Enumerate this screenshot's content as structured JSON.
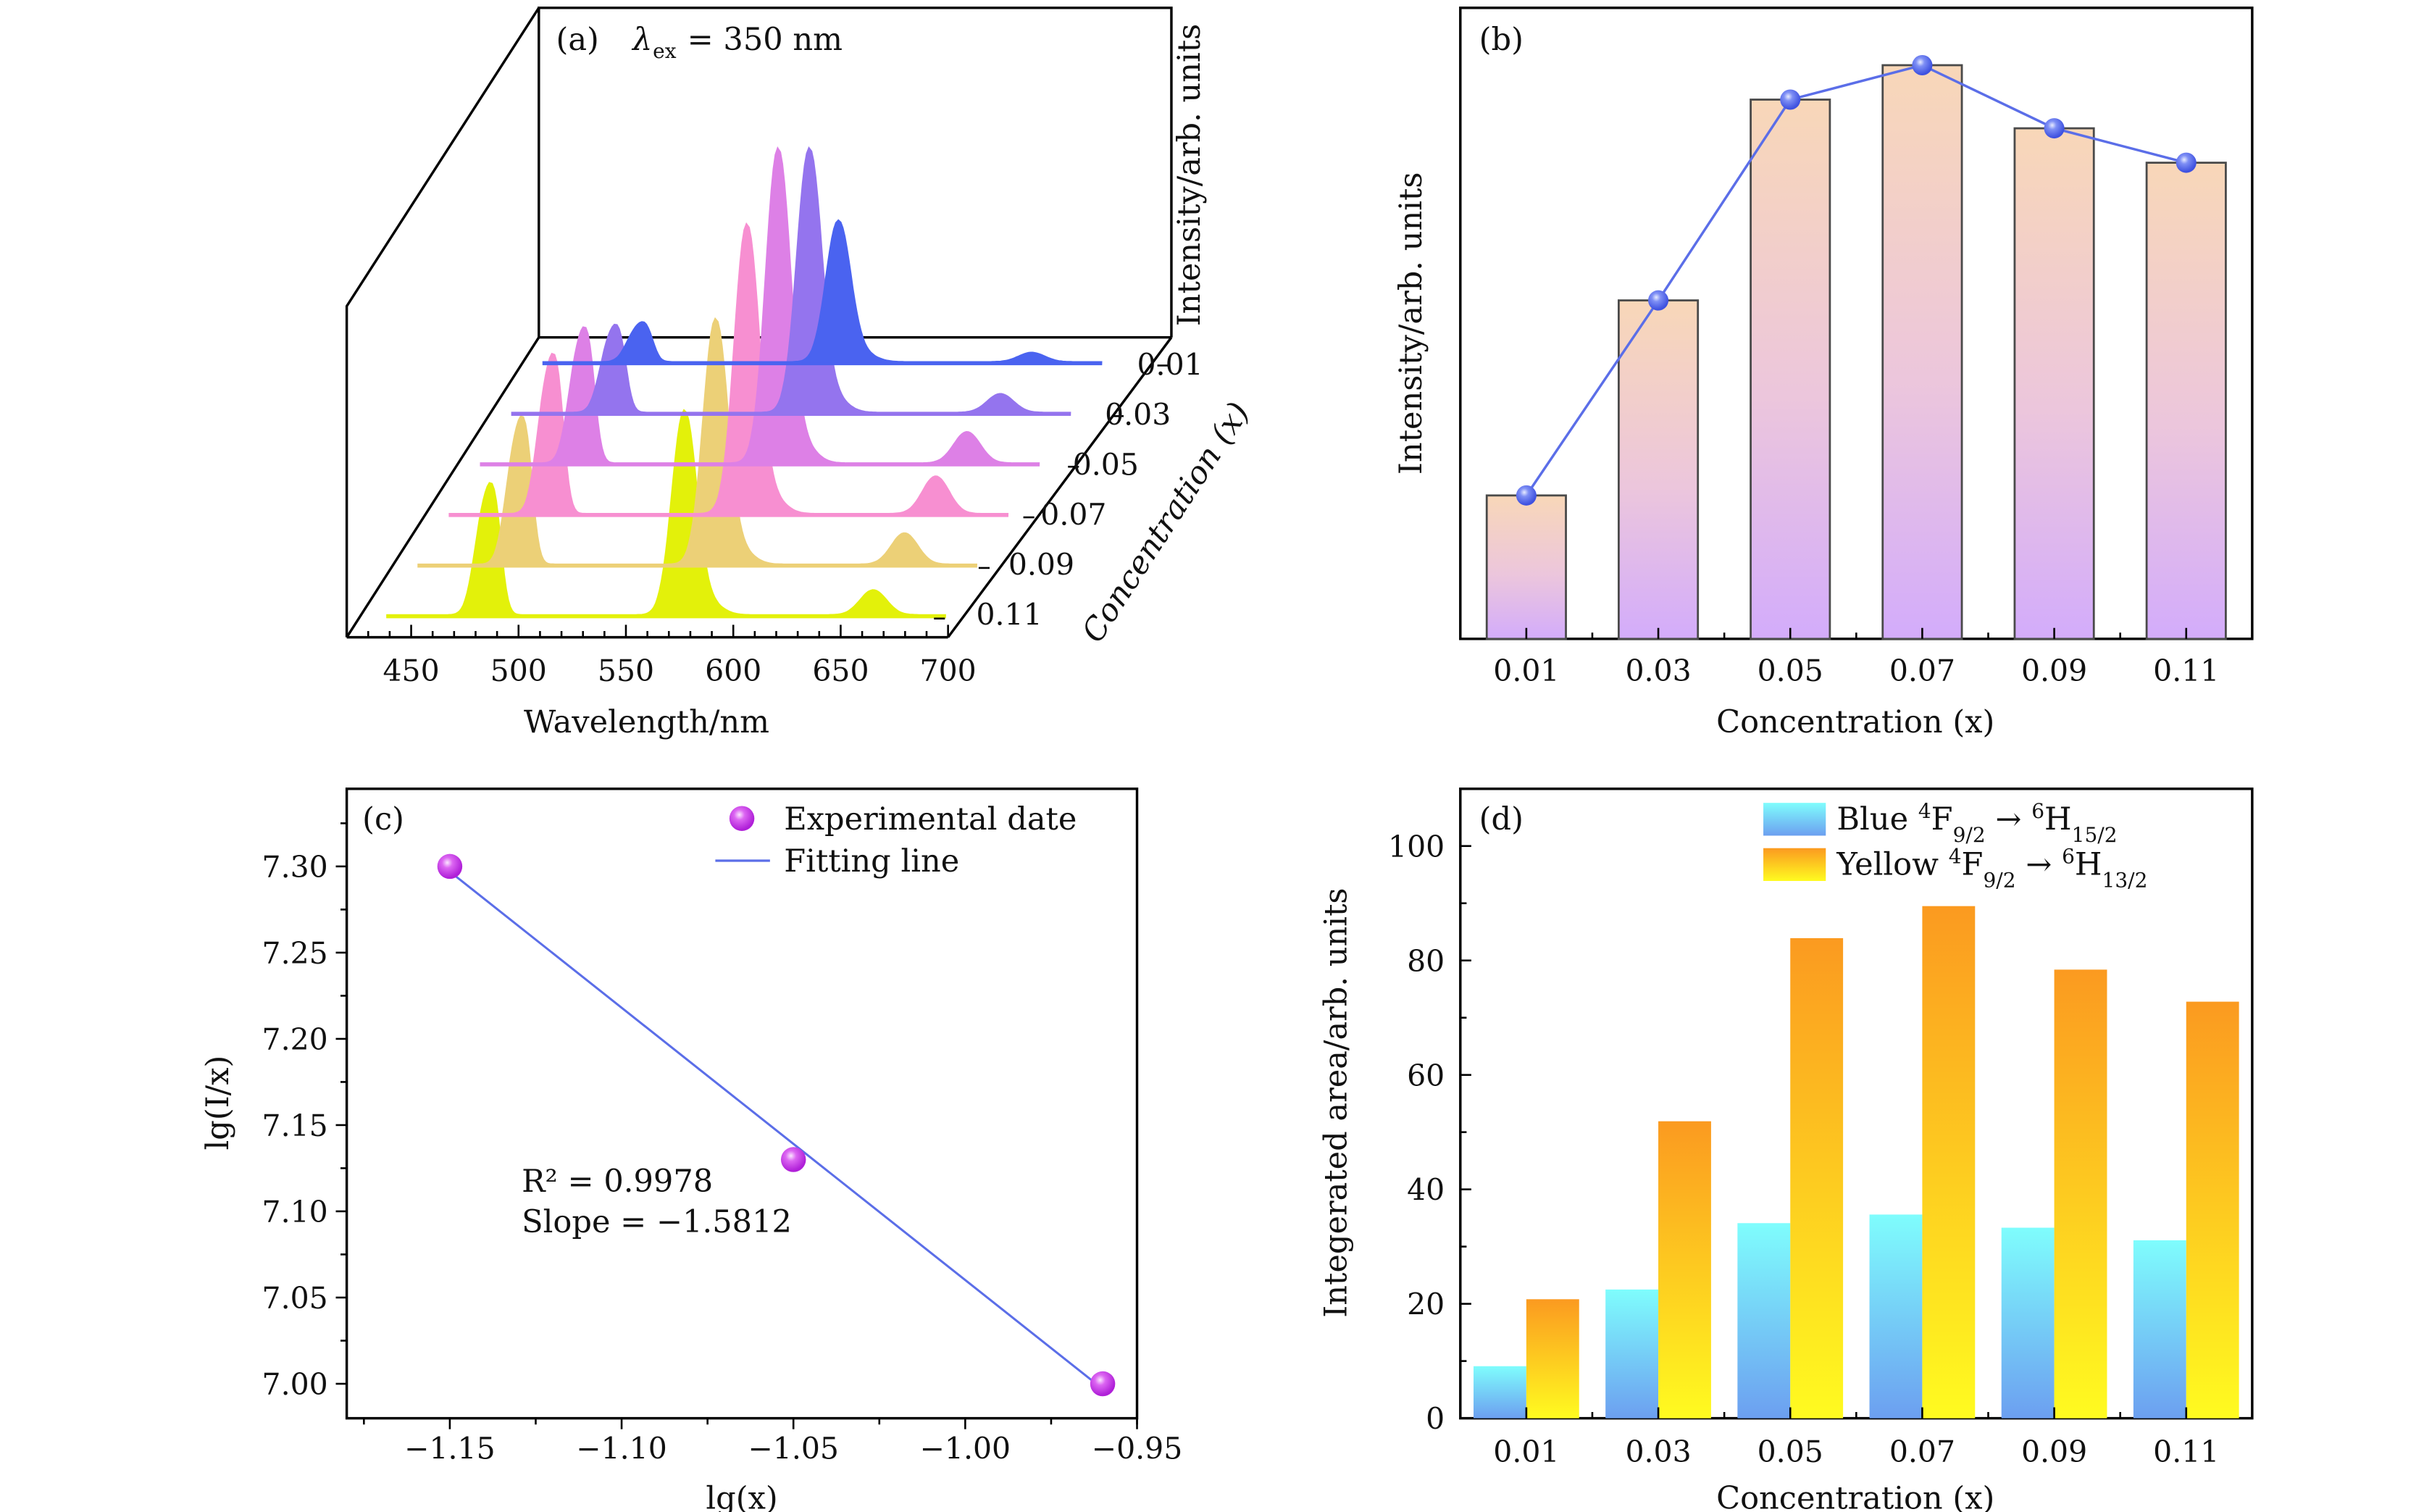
{
  "chart_data": [
    {
      "id": "a",
      "type": "area",
      "panel_label": "(a)",
      "annotation": "λex = 350 nm",
      "annotation_symbol": "λ",
      "annotation_sub": "ex",
      "annotation_value": "=  350 nm",
      "xlabel": "Wavelength/nm",
      "ylabel": "Intensity/arb. units",
      "zlabel": "Concentration (x)",
      "xlim": [
        420,
        700
      ],
      "xticks": [
        450,
        500,
        550,
        600,
        650,
        700
      ],
      "zticks": [
        "0.01",
        "0.03",
        "0.05",
        "0.07",
        "0.09",
        "0.11"
      ],
      "series": [
        {
          "name": "0.01",
          "color": "#4a63f0",
          "peaks": [
            {
              "x": 480,
              "h": 0.1
            },
            {
              "x": 574,
              "h": 0.45
            },
            {
              "x": 664,
              "h": 0.03
            }
          ]
        },
        {
          "name": "0.03",
          "color": "#9474ee",
          "peaks": [
            {
              "x": 482,
              "h": 0.22
            },
            {
              "x": 575,
              "h": 0.84
            },
            {
              "x": 664,
              "h": 0.06
            }
          ]
        },
        {
          "name": "0.05",
          "color": "#dd80e6",
          "peaks": [
            {
              "x": 482,
              "h": 0.34
            },
            {
              "x": 575,
              "h": 1.0
            },
            {
              "x": 663,
              "h": 0.1
            }
          ]
        },
        {
          "name": "0.07",
          "color": "#f78fd1",
          "peaks": [
            {
              "x": 482,
              "h": 0.4
            },
            {
              "x": 575,
              "h": 0.92
            },
            {
              "x": 663,
              "h": 0.12
            }
          ]
        },
        {
          "name": "0.09",
          "color": "#ecd077",
          "peaks": [
            {
              "x": 482,
              "h": 0.37
            },
            {
              "x": 575,
              "h": 0.78
            },
            {
              "x": 663,
              "h": 0.1
            }
          ]
        },
        {
          "name": "0.11",
          "color": "#e3f10a",
          "peaks": [
            {
              "x": 482,
              "h": 0.33
            },
            {
              "x": 575,
              "h": 0.65
            },
            {
              "x": 663,
              "h": 0.08
            }
          ]
        }
      ]
    },
    {
      "id": "b",
      "type": "bar",
      "panel_label": "(b)",
      "xlabel": "Concentration (x)",
      "ylabel": "Intensity/arb. units",
      "categories": [
        "0.01",
        "0.03",
        "0.05",
        "0.07",
        "0.09",
        "0.11"
      ],
      "values": [
        0.25,
        0.59,
        0.94,
        1.0,
        0.89,
        0.83
      ],
      "ylim": [
        0,
        1.1
      ],
      "line_color": "#5b6ee8",
      "bar_top_color": "#f8d7b8",
      "bar_bottom_color": "#d3acfb"
    },
    {
      "id": "c",
      "type": "scatter",
      "panel_label": "(c)",
      "xlabel": "lg(x)",
      "ylabel": "lg(I/x)",
      "xlim": [
        -1.18,
        -0.95
      ],
      "ylim": [
        6.98,
        7.345
      ],
      "xticks": [
        "−1.15",
        "−1.10",
        "−1.05",
        "−1.00",
        "−0.95"
      ],
      "xtick_values": [
        -1.15,
        -1.1,
        -1.05,
        -1.0,
        -0.95
      ],
      "yticks": [
        "7.00",
        "7.05",
        "7.10",
        "7.15",
        "7.20",
        "7.25",
        "7.30"
      ],
      "ytick_values": [
        7.0,
        7.05,
        7.1,
        7.15,
        7.2,
        7.25,
        7.3
      ],
      "points": [
        {
          "x": -1.15,
          "y": 7.3
        },
        {
          "x": -1.05,
          "y": 7.13
        },
        {
          "x": -0.96,
          "y": 7.0
        }
      ],
      "fit": {
        "x": [
          -1.15,
          -0.96
        ],
        "y": [
          7.297,
          6.997
        ]
      },
      "legend": [
        "Experimental date",
        "Fitting line"
      ],
      "legend_position": "top-right",
      "annotation_r2": "R² = 0.9978",
      "annotation_slope": "Slope = −1.5812",
      "point_color": "#cc33ee",
      "line_color": "#5b6ee8"
    },
    {
      "id": "d",
      "type": "bar",
      "panel_label": "(d)",
      "xlabel": "Concentration (x)",
      "ylabel": "Integerated area/arb. units",
      "categories": [
        "0.01",
        "0.03",
        "0.05",
        "0.07",
        "0.09",
        "0.11"
      ],
      "ylim": [
        0,
        110
      ],
      "yticks": [
        "0",
        "20",
        "40",
        "60",
        "80",
        "100"
      ],
      "ytick_values": [
        0,
        20,
        40,
        60,
        80,
        100
      ],
      "series": [
        {
          "name": "Blue 4F9/2 → 6H15/2",
          "values": [
            9.1,
            22.5,
            34.1,
            35.6,
            33.3,
            31.1
          ],
          "top_color": "#7ffdfd",
          "bottom_color": "#6c9ff0"
        },
        {
          "name": "Yellow 4F9/2 → 6H13/2",
          "values": [
            20.8,
            51.9,
            83.9,
            89.5,
            78.4,
            72.8
          ],
          "top_color": "#fb9a20",
          "bottom_color": "#fffb20"
        }
      ],
      "legend_position": "top-right"
    }
  ]
}
